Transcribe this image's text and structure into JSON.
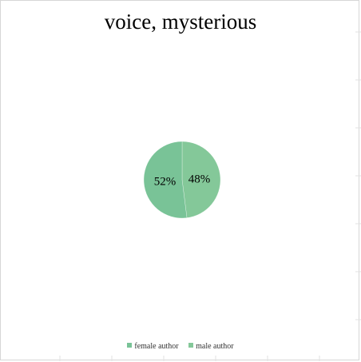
{
  "chart_data": {
    "type": "pie",
    "title": "voice, mysterious",
    "slices": [
      {
        "name": "female author",
        "value": 52,
        "label": "52%",
        "color": "#79c397"
      },
      {
        "name": "male author",
        "value": 48,
        "label": "48%",
        "color": "#84c899"
      }
    ],
    "legend_position": "bottom",
    "grid": false
  }
}
